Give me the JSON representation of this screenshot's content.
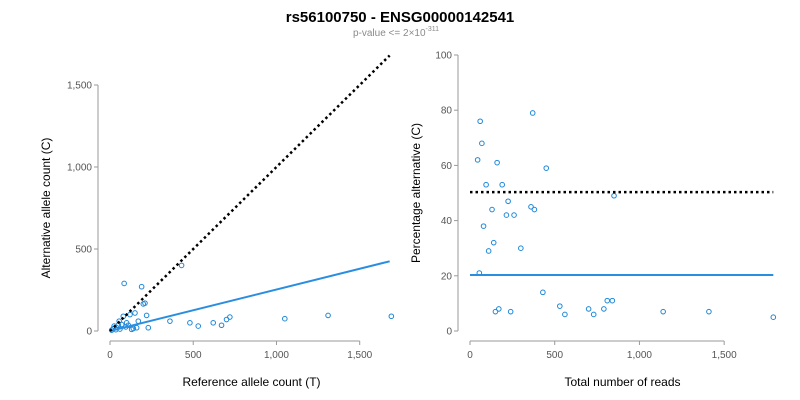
{
  "header": {
    "title": "rs56100750 - ENSG00000142541",
    "subtitle_prefix": "p-value <= 2×10",
    "subtitle_exponent": "-311"
  },
  "colors": {
    "point": "#1e88d8",
    "fit_line": "#2a8ee0",
    "reference_line": "#000000",
    "axis": "#9a9a9a"
  },
  "chart_data": [
    {
      "type": "scatter",
      "name": "left-panel",
      "xlabel": "Reference allele count (T)",
      "ylabel": "Alternative allele count (C)",
      "xlim": [
        0,
        1700
      ],
      "ylim": [
        0,
        1500
      ],
      "xticks": [
        0,
        500,
        1000,
        1500
      ],
      "yticks": [
        0,
        500,
        1000,
        1500
      ],
      "xtick_labels": [
        "0",
        "500",
        "1,000",
        "1,500"
      ],
      "ytick_labels": [
        "0",
        "500",
        "1,000",
        "1,500"
      ],
      "points": [
        [
          10,
          5
        ],
        [
          20,
          15
        ],
        [
          25,
          30
        ],
        [
          35,
          8
        ],
        [
          40,
          20
        ],
        [
          50,
          35
        ],
        [
          55,
          60
        ],
        [
          60,
          12
        ],
        [
          70,
          40
        ],
        [
          80,
          90
        ],
        [
          85,
          290
        ],
        [
          95,
          25
        ],
        [
          100,
          50
        ],
        [
          110,
          35
        ],
        [
          120,
          100
        ],
        [
          130,
          10
        ],
        [
          140,
          15
        ],
        [
          150,
          110
        ],
        [
          160,
          20
        ],
        [
          170,
          60
        ],
        [
          190,
          270
        ],
        [
          200,
          165
        ],
        [
          210,
          170
        ],
        [
          220,
          95
        ],
        [
          230,
          20
        ],
        [
          360,
          60
        ],
        [
          430,
          400
        ],
        [
          480,
          50
        ],
        [
          530,
          30
        ],
        [
          620,
          50
        ],
        [
          670,
          35
        ],
        [
          700,
          70
        ],
        [
          720,
          85
        ],
        [
          1050,
          75
        ],
        [
          1310,
          95
        ],
        [
          1690,
          90
        ]
      ],
      "fit_line": [
        [
          0,
          0
        ],
        [
          1680,
          425
        ]
      ],
      "reference_line": [
        [
          0,
          0
        ],
        [
          1680,
          1680
        ]
      ]
    },
    {
      "type": "scatter",
      "name": "right-panel",
      "xlabel": "Total number of reads",
      "ylabel": "Percentage alternative (C)",
      "xlim": [
        0,
        1800
      ],
      "ylim": [
        0,
        100
      ],
      "xticks": [
        0,
        500,
        1000,
        1500
      ],
      "yticks": [
        0,
        20,
        40,
        60,
        80,
        100
      ],
      "xtick_labels": [
        "0",
        "500",
        "1,000",
        "1,500"
      ],
      "ytick_labels": [
        "0",
        "20",
        "40",
        "60",
        "80",
        "100"
      ],
      "points": [
        [
          45,
          62
        ],
        [
          55,
          21
        ],
        [
          60,
          76
        ],
        [
          70,
          68
        ],
        [
          80,
          38
        ],
        [
          95,
          53
        ],
        [
          110,
          29
        ],
        [
          130,
          44
        ],
        [
          140,
          32
        ],
        [
          150,
          7
        ],
        [
          160,
          61
        ],
        [
          170,
          8
        ],
        [
          190,
          53
        ],
        [
          215,
          42
        ],
        [
          225,
          47
        ],
        [
          240,
          7
        ],
        [
          260,
          42
        ],
        [
          300,
          30
        ],
        [
          360,
          45
        ],
        [
          370,
          79
        ],
        [
          380,
          44
        ],
        [
          430,
          14
        ],
        [
          450,
          59
        ],
        [
          530,
          9
        ],
        [
          560,
          6
        ],
        [
          700,
          8
        ],
        [
          730,
          6
        ],
        [
          790,
          8
        ],
        [
          810,
          11
        ],
        [
          840,
          11
        ],
        [
          850,
          49
        ],
        [
          1140,
          7
        ],
        [
          1410,
          7
        ],
        [
          1790,
          5
        ]
      ],
      "fit_line": [
        [
          0,
          20.3
        ],
        [
          1790,
          20.3
        ]
      ],
      "reference_line": [
        [
          0,
          50.3
        ],
        [
          1790,
          50.3
        ]
      ]
    }
  ]
}
